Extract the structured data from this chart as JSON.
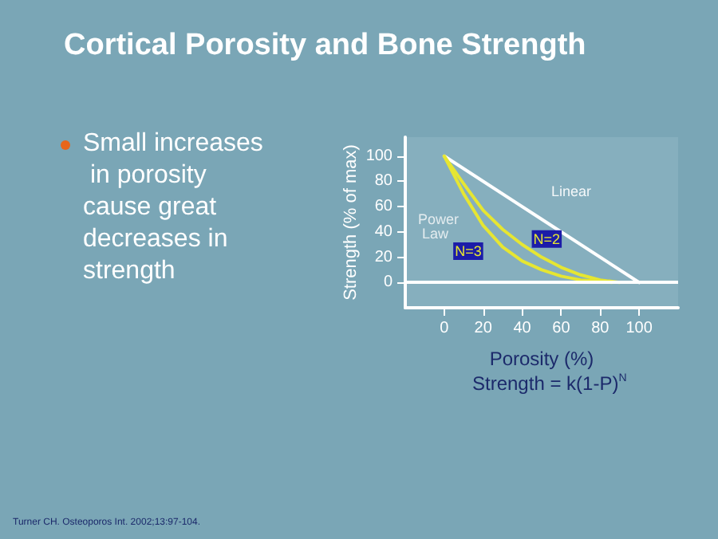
{
  "chart_data": {
    "type": "line",
    "title": "Cortical Porosity and Bone Strength",
    "xlabel": "Porosity (%)",
    "ylabel": "Strength (% of max)",
    "xlim": [
      -20,
      120
    ],
    "xticks": [
      0,
      20,
      40,
      60,
      80,
      100
    ],
    "ylim": [
      -20,
      115
    ],
    "yticks": [
      0,
      20,
      40,
      60,
      80,
      100
    ],
    "grid": false,
    "legend": false,
    "marker": "none",
    "line_style": "solid",
    "series": [
      {
        "name": "Linear",
        "color": "#ffffff",
        "x": [
          0,
          50,
          100
        ],
        "values": [
          100,
          50,
          0
        ]
      },
      {
        "name": "N=2",
        "color": "#e6e632",
        "x": [
          0,
          10,
          20,
          30,
          40,
          50,
          60,
          70,
          80,
          90
        ],
        "values": [
          100,
          78,
          57,
          42,
          30,
          20,
          12,
          6,
          2,
          0
        ]
      },
      {
        "name": "N=3",
        "color": "#e6e632",
        "x": [
          0,
          10,
          20,
          30,
          40,
          50,
          60,
          70,
          80,
          86
        ],
        "values": [
          100,
          70,
          45,
          28,
          17,
          10,
          5,
          2,
          1,
          0
        ]
      }
    ],
    "ref_lines": [
      {
        "axis": "y",
        "value": 0,
        "color": "#ffffff"
      }
    ],
    "annotations": [
      "Small increases in porosity cause great decreases in strength",
      "Power Law",
      "Strength = k(1-P)$^{N}$",
      "Turner CH. Osteoporos Int. 2002;13:97-104."
    ]
  }
}
